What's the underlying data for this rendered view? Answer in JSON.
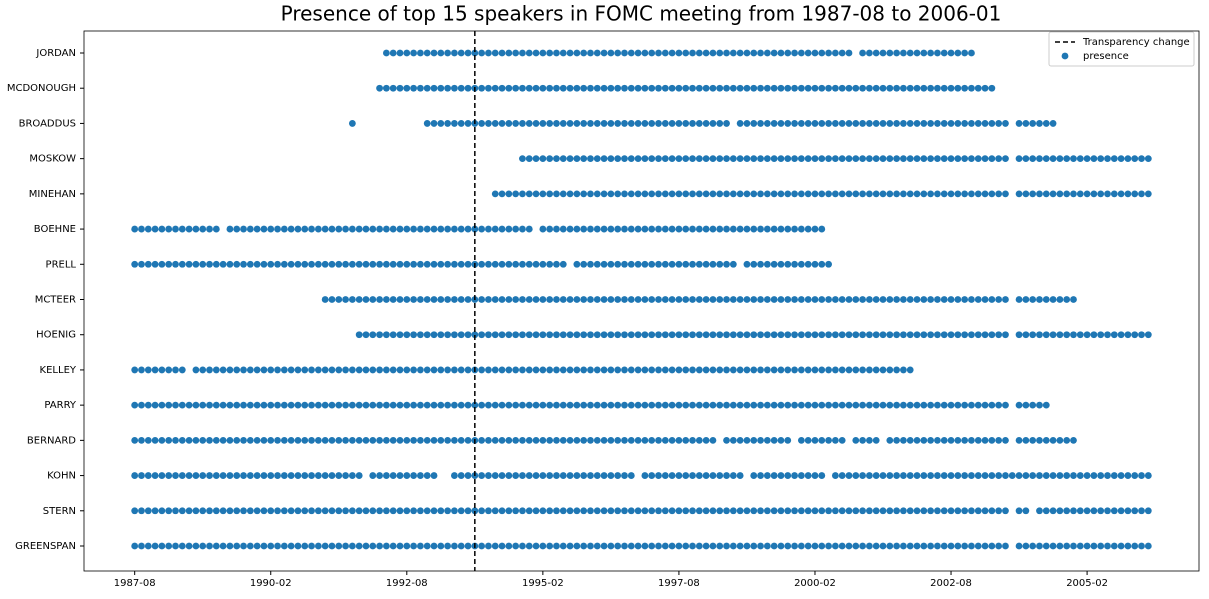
{
  "chart_data": {
    "type": "scatter",
    "title": "Presence of top 15 speakers in FOMC meeting from 1987-08 to 2006-01",
    "categories": [
      "JORDAN",
      "MCDONOUGH",
      "BROADDUS",
      "MOSKOW",
      "MINEHAN",
      "BOEHNE",
      "PRELL",
      "MCTEER",
      "HOENIG",
      "KELLEY",
      "PARRY",
      "BERNARD",
      "KOHN",
      "STERN",
      "GREENSPAN"
    ],
    "series": [
      {
        "name": "presence",
        "color": "#1f77b4",
        "spans": [
          [
            [
              37,
              105
            ],
            [
              107,
              123
            ]
          ],
          [
            [
              36,
              126
            ]
          ],
          [
            [
              32,
              32
            ],
            [
              43,
              87
            ],
            [
              89,
              128
            ],
            [
              130,
              135
            ]
          ],
          [
            [
              57,
              128
            ],
            [
              130,
              149
            ]
          ],
          [
            [
              53,
              128
            ],
            [
              130,
              149
            ]
          ],
          [
            [
              0,
              12
            ],
            [
              14,
              58
            ],
            [
              60,
              101
            ]
          ],
          [
            [
              0,
              63
            ],
            [
              65,
              88
            ],
            [
              90,
              102
            ]
          ],
          [
            [
              28,
              128
            ],
            [
              130,
              138
            ]
          ],
          [
            [
              33,
              128
            ],
            [
              130,
              149
            ]
          ],
          [
            [
              0,
              7
            ],
            [
              9,
              114
            ]
          ],
          [
            [
              0,
              128
            ],
            [
              130,
              134
            ]
          ],
          [
            [
              0,
              85
            ],
            [
              87,
              96
            ],
            [
              98,
              104
            ],
            [
              106,
              109
            ],
            [
              111,
              128
            ],
            [
              130,
              138
            ]
          ],
          [
            [
              0,
              33
            ],
            [
              35,
              44
            ],
            [
              47,
              73
            ],
            [
              75,
              89
            ],
            [
              91,
              101
            ],
            [
              103,
              149
            ]
          ],
          [
            [
              0,
              128
            ],
            [
              130,
              131
            ],
            [
              133,
              149
            ]
          ],
          [
            [
              0,
              128
            ],
            [
              130,
              149
            ]
          ]
        ]
      }
    ],
    "vline": {
      "name": "Transparency change",
      "x": 50,
      "color": "#000000"
    },
    "xlim": [
      -7.45,
      156.45
    ],
    "xticks": [
      {
        "value": 0,
        "label": "1987-08"
      },
      {
        "value": 20,
        "label": "1990-02"
      },
      {
        "value": 40,
        "label": "1992-08"
      },
      {
        "value": 60,
        "label": "1995-02"
      },
      {
        "value": 80,
        "label": "1997-08"
      },
      {
        "value": 100,
        "label": "2000-02"
      },
      {
        "value": 120,
        "label": "2002-08"
      },
      {
        "value": 140,
        "label": "2005-02"
      }
    ],
    "legend": "upper right"
  }
}
